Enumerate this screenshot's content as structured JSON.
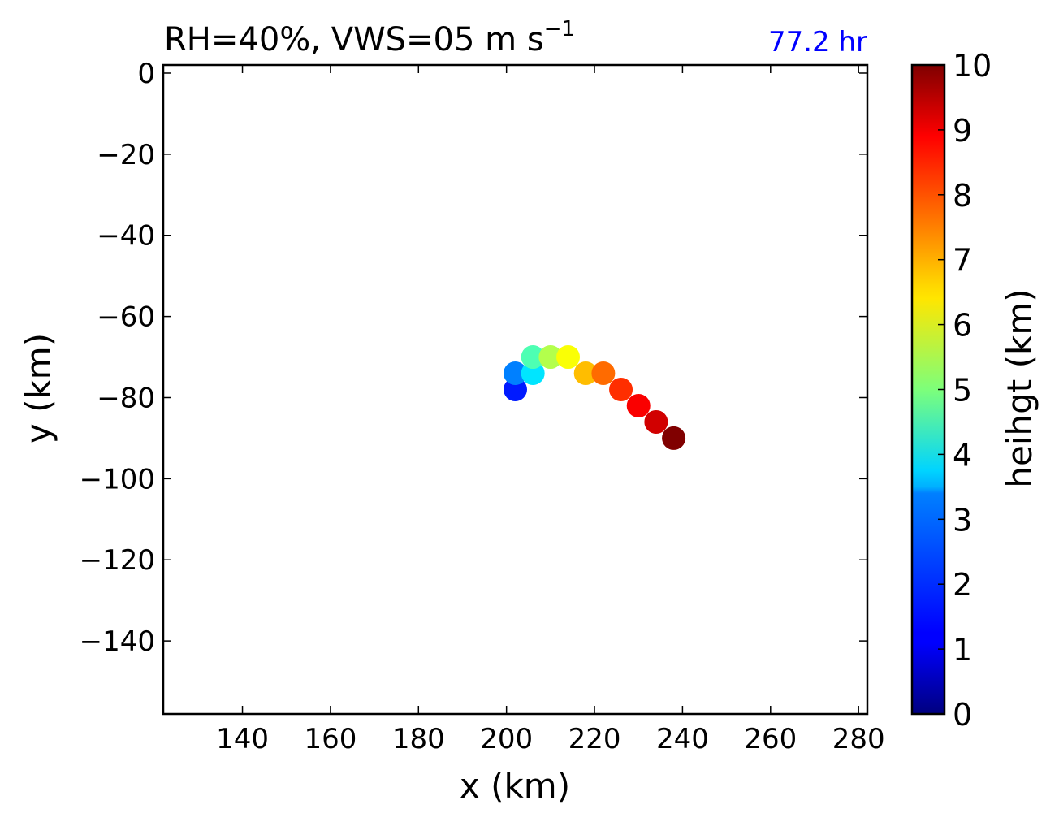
{
  "chart_data": {
    "type": "scatter",
    "title": "RH=40%, VWS=05 m s",
    "title_superscript": "−1",
    "time_annotation": "77.2 hr",
    "xlabel": "x (km)",
    "ylabel": "y (km)",
    "xlim": [
      122,
      282
    ],
    "ylim": [
      -158,
      2
    ],
    "xticks": [
      140,
      160,
      180,
      200,
      220,
      240,
      260,
      280
    ],
    "xtick_labels": [
      "140",
      "160",
      "180",
      "200",
      "220",
      "240",
      "260",
      "280"
    ],
    "yticks": [
      0,
      -20,
      -40,
      -60,
      -80,
      -100,
      -120,
      -140
    ],
    "ytick_labels": [
      "0",
      "−20",
      "−40",
      "−60",
      "−80",
      "−100",
      "−120",
      "−140"
    ],
    "grid": false,
    "colormap": "jet",
    "colorbar": {
      "label": "heihgt (km)",
      "range": [
        0,
        10
      ],
      "ticks": [
        0,
        1,
        2,
        3,
        4,
        5,
        6,
        7,
        8,
        9,
        10
      ],
      "tick_labels": [
        "0",
        "1",
        "2",
        "3",
        "4",
        "5",
        "6",
        "7",
        "8",
        "9",
        "10"
      ]
    },
    "points": [
      {
        "x": 202,
        "y": -78,
        "height": 1.5
      },
      {
        "x": 202,
        "y": -74,
        "height": 2.5
      },
      {
        "x": 206,
        "y": -74,
        "height": 3.5
      },
      {
        "x": 206,
        "y": -70,
        "height": 4.5
      },
      {
        "x": 210,
        "y": -70,
        "height": 5.5
      },
      {
        "x": 214,
        "y": -70,
        "height": 6.2
      },
      {
        "x": 218,
        "y": -74,
        "height": 6.9
      },
      {
        "x": 222,
        "y": -74,
        "height": 7.7
      },
      {
        "x": 226,
        "y": -78,
        "height": 8.3
      },
      {
        "x": 230,
        "y": -82,
        "height": 8.8
      },
      {
        "x": 234,
        "y": -86,
        "height": 9.2
      },
      {
        "x": 238,
        "y": -90,
        "height": 10.0
      }
    ]
  }
}
